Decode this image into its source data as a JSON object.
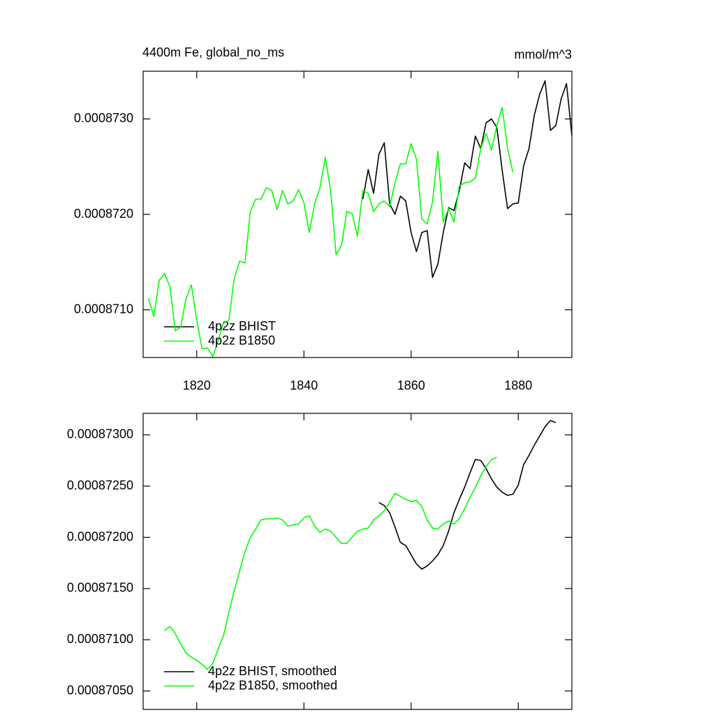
{
  "chart_data": [
    {
      "type": "line",
      "title": "4400m Fe, global_no_ms",
      "units": "mmol/m^3",
      "xlim": [
        1810,
        1890
      ],
      "xticks": [
        1820,
        1840,
        1860,
        1880
      ],
      "xtick_labels": true,
      "ylim": [
        0.0008705,
        0.0008735
      ],
      "yticks": [
        {
          "value": 0.000871,
          "label": "0.0008710"
        },
        {
          "value": 0.000872,
          "label": "0.0008720"
        },
        {
          "value": 0.000873,
          "label": "0.0008730"
        }
      ],
      "series": [
        {
          "name": "4p2z BHIST",
          "color": "#000000",
          "x": [
            1851,
            1852,
            1853,
            1854,
            1855,
            1856,
            1857,
            1858,
            1859,
            1860,
            1861,
            1862,
            1863,
            1864,
            1865,
            1866,
            1867,
            1868,
            1869,
            1870,
            1871,
            1872,
            1873,
            1874,
            1875,
            1876,
            1877,
            1878,
            1879,
            1880,
            1881,
            1882,
            1883,
            1884,
            1885,
            1886,
            1887,
            1888,
            1889,
            1890
          ],
          "values": [
            0.00087216,
            0.00087247,
            0.00087222,
            0.00087263,
            0.00087275,
            0.00087211,
            0.000872,
            0.00087219,
            0.00087214,
            0.00087181,
            0.00087161,
            0.00087181,
            0.00087183,
            0.00087134,
            0.00087148,
            0.00087181,
            0.00087207,
            0.00087204,
            0.00087225,
            0.00087254,
            0.00087248,
            0.00087282,
            0.00087269,
            0.00087296,
            0.000873,
            0.00087291,
            0.00087246,
            0.00087206,
            0.00087211,
            0.00087212,
            0.00087251,
            0.00087269,
            0.00087304,
            0.00087326,
            0.0008734,
            0.00087288,
            0.00087293,
            0.00087321,
            0.00087337,
            0.00087283
          ]
        },
        {
          "name": "4p2z B1850",
          "color": "#00ff00",
          "x": [
            1811,
            1812,
            1813,
            1814,
            1815,
            1816,
            1817,
            1818,
            1819,
            1820,
            1821,
            1822,
            1823,
            1824,
            1825,
            1826,
            1827,
            1828,
            1829,
            1830,
            1831,
            1832,
            1833,
            1834,
            1835,
            1836,
            1837,
            1838,
            1839,
            1840,
            1841,
            1842,
            1843,
            1844,
            1845,
            1846,
            1847,
            1848,
            1849,
            1850,
            1851,
            1852,
            1853,
            1854,
            1855,
            1856,
            1857,
            1858,
            1859,
            1860,
            1861,
            1862,
            1863,
            1864,
            1865,
            1866,
            1867,
            1868,
            1869,
            1870,
            1871,
            1872,
            1873,
            1874,
            1875,
            1876,
            1877,
            1878,
            1879
          ],
          "values": [
            0.00087112,
            0.00087093,
            0.00087131,
            0.00087138,
            0.00087124,
            0.00087078,
            0.00087082,
            0.00087112,
            0.00087126,
            0.00087089,
            0.00087059,
            0.0008706,
            0.00087051,
            0.00087068,
            0.00087086,
            0.00087089,
            0.00087133,
            0.00087151,
            0.00087149,
            0.00087203,
            0.00087216,
            0.00087216,
            0.00087228,
            0.00087225,
            0.00087205,
            0.00087225,
            0.00087211,
            0.00087214,
            0.00087226,
            0.00087212,
            0.00087181,
            0.00087211,
            0.00087228,
            0.0008726,
            0.00087224,
            0.00087158,
            0.00087167,
            0.00087203,
            0.00087201,
            0.00087177,
            0.00087225,
            0.00087222,
            0.00087203,
            0.00087211,
            0.00087214,
            0.00087208,
            0.00087233,
            0.00087253,
            0.00087253,
            0.00087274,
            0.00087258,
            0.00087195,
            0.0008719,
            0.00087213,
            0.00087266,
            0.00087192,
            0.00087206,
            0.00087192,
            0.0008723,
            0.00087233,
            0.00087234,
            0.00087238,
            0.00087269,
            0.00087285,
            0.00087267,
            0.00087293,
            0.00087312,
            0.00087269,
            0.00087244
          ]
        }
      ]
    },
    {
      "type": "line",
      "xlim": [
        1810,
        1890
      ],
      "xticks": [
        1820,
        1840,
        1860,
        1880
      ],
      "xtick_labels": false,
      "ylim": [
        0.00087032,
        0.00087321
      ],
      "yticks": [
        {
          "value": 0.0008705,
          "label": "0.00087050"
        },
        {
          "value": 0.000871,
          "label": "0.00087100"
        },
        {
          "value": 0.0008715,
          "label": "0.00087150"
        },
        {
          "value": 0.000872,
          "label": "0.00087200"
        },
        {
          "value": 0.0008725,
          "label": "0.00087250"
        },
        {
          "value": 0.000873,
          "label": "0.00087300"
        }
      ],
      "series": [
        {
          "name": "4p2z BHIST, smoothed",
          "color": "#000000",
          "x": [
            1854,
            1855,
            1856,
            1857,
            1858,
            1859,
            1860,
            1861,
            1862,
            1863,
            1864,
            1865,
            1866,
            1867,
            1868,
            1869,
            1870,
            1871,
            1872,
            1873,
            1874,
            1875,
            1876,
            1877,
            1878,
            1879,
            1880,
            1881,
            1882,
            1883,
            1884,
            1885,
            1886,
            1887
          ],
          "values": [
            0.00087234,
            0.00087231,
            0.00087224,
            0.0008721,
            0.00087195,
            0.00087192,
            0.00087183,
            0.00087174,
            0.00087169,
            0.00087172,
            0.00087177,
            0.00087183,
            0.00087192,
            0.00087206,
            0.00087224,
            0.00087237,
            0.00087249,
            0.00087263,
            0.00087276,
            0.00087275,
            0.00087267,
            0.00087257,
            0.00087249,
            0.00087244,
            0.00087241,
            0.00087242,
            0.00087251,
            0.00087271,
            0.0008728,
            0.0008729,
            0.00087299,
            0.00087308,
            0.00087314,
            0.00087312
          ]
        },
        {
          "name": "4p2z B1850, smoothed",
          "color": "#00ff00",
          "x": [
            1814,
            1815,
            1816,
            1817,
            1818,
            1819,
            1820,
            1821,
            1822,
            1823,
            1824,
            1825,
            1826,
            1827,
            1828,
            1829,
            1830,
            1831,
            1832,
            1833,
            1834,
            1835,
            1836,
            1837,
            1838,
            1839,
            1840,
            1841,
            1842,
            1843,
            1844,
            1845,
            1846,
            1847,
            1848,
            1849,
            1850,
            1851,
            1852,
            1853,
            1854,
            1855,
            1856,
            1857,
            1858,
            1859,
            1860,
            1861,
            1862,
            1863,
            1864,
            1865,
            1866,
            1867,
            1868,
            1869,
            1870,
            1871,
            1872,
            1873,
            1874,
            1875,
            1876
          ],
          "values": [
            0.00087109,
            0.00087113,
            0.00087106,
            0.00087096,
            0.00087087,
            0.00087083,
            0.0008708,
            0.00087076,
            0.00087071,
            0.00087077,
            0.00087091,
            0.00087104,
            0.00087127,
            0.00087148,
            0.00087167,
            0.00087186,
            0.000872,
            0.00087208,
            0.00087217,
            0.00087218,
            0.00087218,
            0.00087219,
            0.00087217,
            0.00087211,
            0.00087212,
            0.00087213,
            0.00087219,
            0.00087221,
            0.00087211,
            0.00087205,
            0.00087208,
            0.00087206,
            0.000872,
            0.00087194,
            0.00087194,
            0.000872,
            0.00087206,
            0.00087208,
            0.00087209,
            0.00087217,
            0.00087221,
            0.00087226,
            0.00087234,
            0.00087243,
            0.0008724,
            0.00087237,
            0.00087235,
            0.00087236,
            0.0008723,
            0.00087217,
            0.00087209,
            0.00087208,
            0.00087213,
            0.00087216,
            0.00087213,
            0.00087218,
            0.00087228,
            0.00087239,
            0.00087249,
            0.0008726,
            0.00087269,
            0.00087276,
            0.00087278
          ]
        }
      ]
    }
  ]
}
